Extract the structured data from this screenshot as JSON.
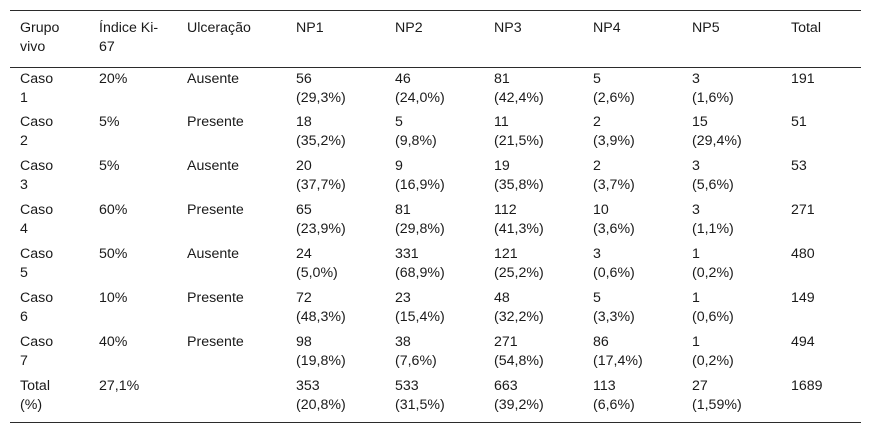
{
  "table": {
    "headers": [
      "Grupo vivo",
      "Índice Ki-67",
      "Ulceração",
      "NP1",
      "NP2",
      "NP3",
      "NP4",
      "NP5",
      "Total"
    ],
    "header_lines": [
      [
        "Grupo",
        "vivo"
      ],
      [
        "Índice Ki-",
        "67"
      ],
      [
        "Ulceração"
      ],
      [
        "NP1"
      ],
      [
        "NP2"
      ],
      [
        "NP3"
      ],
      [
        "NP4"
      ],
      [
        "NP5"
      ],
      [
        "Total"
      ]
    ],
    "rows": [
      [
        [
          "Caso",
          "1"
        ],
        [
          "20%"
        ],
        [
          "Ausente"
        ],
        [
          "56",
          "(29,3%)"
        ],
        [
          "46",
          "(24,0%)"
        ],
        [
          "81",
          "(42,4%)"
        ],
        [
          "5",
          "(2,6%)"
        ],
        [
          "3",
          "(1,6%)"
        ],
        [
          "191"
        ]
      ],
      [
        [
          "Caso",
          "2"
        ],
        [
          "5%"
        ],
        [
          "Presente"
        ],
        [
          "18",
          "(35,2%)"
        ],
        [
          "5",
          "(9,8%)"
        ],
        [
          "11",
          "(21,5%)"
        ],
        [
          "2",
          "(3,9%)"
        ],
        [
          "15",
          "(29,4%)"
        ],
        [
          "51"
        ]
      ],
      [
        [
          "Caso",
          "3"
        ],
        [
          "5%"
        ],
        [
          "Ausente"
        ],
        [
          "20",
          "(37,7%)"
        ],
        [
          "9",
          "(16,9%)"
        ],
        [
          "19",
          "(35,8%)"
        ],
        [
          "2",
          "(3,7%)"
        ],
        [
          "3",
          "(5,6%)"
        ],
        [
          "53"
        ]
      ],
      [
        [
          "Caso",
          "4"
        ],
        [
          "60%"
        ],
        [
          "Presente"
        ],
        [
          "65",
          "(23,9%)"
        ],
        [
          "81",
          "(29,8%)"
        ],
        [
          "112",
          "(41,3%)"
        ],
        [
          "10",
          "(3,6%)"
        ],
        [
          "3",
          "(1,1%)"
        ],
        [
          "271"
        ]
      ],
      [
        [
          "Caso",
          "5"
        ],
        [
          "50%"
        ],
        [
          "Ausente"
        ],
        [
          "24",
          "(5,0%)"
        ],
        [
          "331",
          "(68,9%)"
        ],
        [
          "121",
          "(25,2%)"
        ],
        [
          "3",
          "(0,6%)"
        ],
        [
          "1",
          "(0,2%)"
        ],
        [
          "480"
        ]
      ],
      [
        [
          "Caso",
          "6"
        ],
        [
          "10%"
        ],
        [
          "Presente"
        ],
        [
          "72",
          "(48,3%)"
        ],
        [
          "23",
          "(15,4%)"
        ],
        [
          "48",
          "(32,2%)"
        ],
        [
          "5",
          "(3,3%)"
        ],
        [
          "1",
          "(0,6%)"
        ],
        [
          "149"
        ]
      ],
      [
        [
          "Caso",
          "7"
        ],
        [
          "40%"
        ],
        [
          "Presente"
        ],
        [
          "98",
          "(19,8%)"
        ],
        [
          "38",
          "(7,6%)"
        ],
        [
          "271",
          "(54,8%)"
        ],
        [
          "86",
          "(17,4%)"
        ],
        [
          "1",
          "(0,2%)"
        ],
        [
          "494"
        ]
      ],
      [
        [
          "Total",
          "(%)"
        ],
        [
          "27,1%"
        ],
        [
          ""
        ],
        [
          "353",
          "(20,8%)"
        ],
        [
          "533",
          "(31,5%)"
        ],
        [
          "663",
          "(39,2%)"
        ],
        [
          "113",
          "(6,6%)"
        ],
        [
          "27",
          "(1,59%)"
        ],
        [
          "1689"
        ]
      ]
    ]
  }
}
